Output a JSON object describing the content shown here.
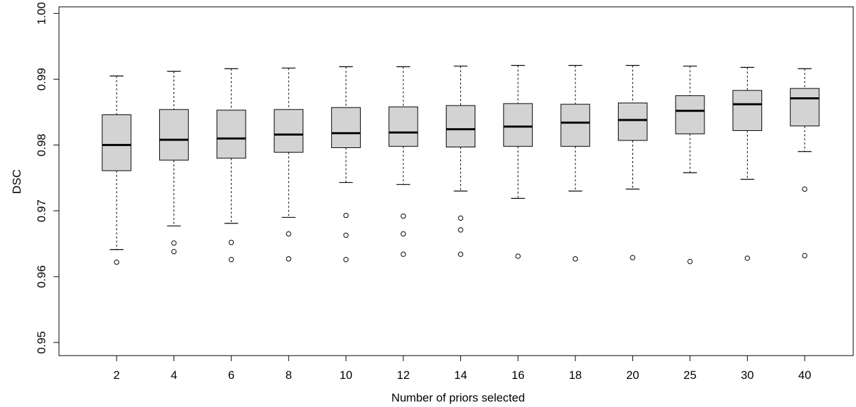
{
  "chart_data": {
    "type": "boxplot",
    "title": "",
    "xlabel": "Number of priors selected",
    "ylabel": "DSC",
    "ylim": [
      0.948,
      1.001
    ],
    "yticks": [
      "0.95",
      "0.96",
      "0.97",
      "0.98",
      "0.99",
      "1.00"
    ],
    "grid": false,
    "legend": "none",
    "colors": {
      "box_fill": "#d3d3d3",
      "stroke": "#000000"
    },
    "categories": [
      "2",
      "4",
      "6",
      "8",
      "10",
      "12",
      "14",
      "16",
      "18",
      "20",
      "25",
      "30",
      "40"
    ],
    "boxes": [
      {
        "whisker_low": 0.9641,
        "q1": 0.9761,
        "median": 0.98,
        "q3": 0.9846,
        "whisker_high": 0.9905,
        "outliers": [
          0.9622
        ]
      },
      {
        "whisker_low": 0.9677,
        "q1": 0.9777,
        "median": 0.9808,
        "q3": 0.9854,
        "whisker_high": 0.9912,
        "outliers": [
          0.9651,
          0.9638
        ]
      },
      {
        "whisker_low": 0.9681,
        "q1": 0.978,
        "median": 0.981,
        "q3": 0.9853,
        "whisker_high": 0.9916,
        "outliers": [
          0.9652,
          0.9626
        ]
      },
      {
        "whisker_low": 0.969,
        "q1": 0.9789,
        "median": 0.9816,
        "q3": 0.9854,
        "whisker_high": 0.9917,
        "outliers": [
          0.9665,
          0.9627
        ]
      },
      {
        "whisker_low": 0.9743,
        "q1": 0.9796,
        "median": 0.9818,
        "q3": 0.9857,
        "whisker_high": 0.9919,
        "outliers": [
          0.9693,
          0.9663,
          0.9626
        ]
      },
      {
        "whisker_low": 0.974,
        "q1": 0.9798,
        "median": 0.9819,
        "q3": 0.9858,
        "whisker_high": 0.9919,
        "outliers": [
          0.9692,
          0.9665,
          0.9634
        ]
      },
      {
        "whisker_low": 0.973,
        "q1": 0.9797,
        "median": 0.9824,
        "q3": 0.986,
        "whisker_high": 0.992,
        "outliers": [
          0.9689,
          0.9671,
          0.9634
        ]
      },
      {
        "whisker_low": 0.9719,
        "q1": 0.9798,
        "median": 0.9828,
        "q3": 0.9863,
        "whisker_high": 0.9921,
        "outliers": [
          0.9631
        ]
      },
      {
        "whisker_low": 0.973,
        "q1": 0.9798,
        "median": 0.9834,
        "q3": 0.9862,
        "whisker_high": 0.9921,
        "outliers": [
          0.9627
        ]
      },
      {
        "whisker_low": 0.9733,
        "q1": 0.9807,
        "median": 0.9838,
        "q3": 0.9864,
        "whisker_high": 0.9921,
        "outliers": [
          0.9629
        ]
      },
      {
        "whisker_low": 0.9758,
        "q1": 0.9817,
        "median": 0.9852,
        "q3": 0.9875,
        "whisker_high": 0.992,
        "outliers": [
          0.9623
        ]
      },
      {
        "whisker_low": 0.9748,
        "q1": 0.9822,
        "median": 0.9862,
        "q3": 0.9883,
        "whisker_high": 0.9918,
        "outliers": [
          0.9628
        ]
      },
      {
        "whisker_low": 0.979,
        "q1": 0.9829,
        "median": 0.9871,
        "q3": 0.9886,
        "whisker_high": 0.9916,
        "outliers": [
          0.9733,
          0.9632
        ]
      }
    ]
  }
}
